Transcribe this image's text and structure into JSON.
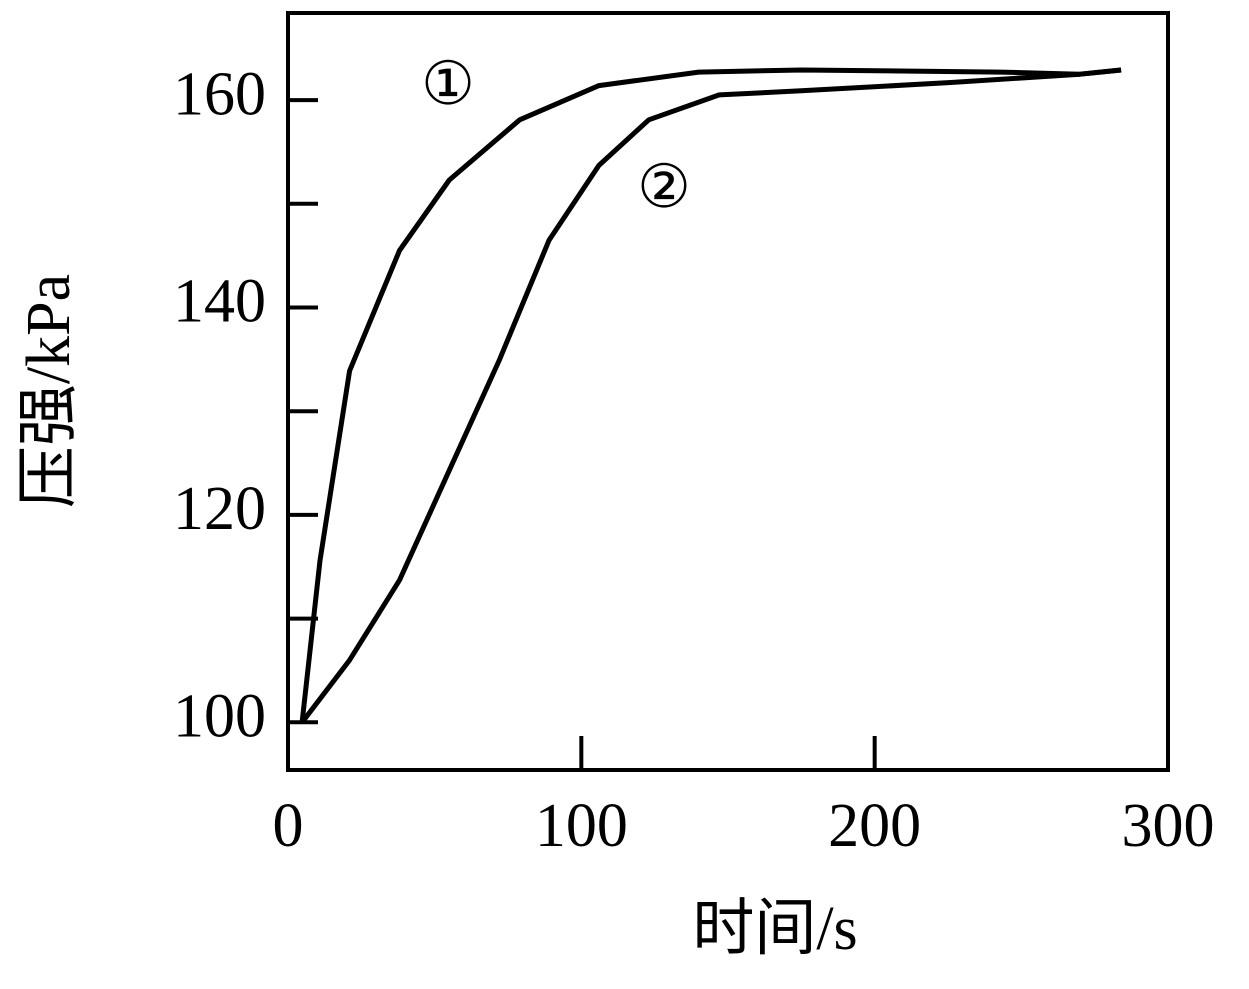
{
  "chart_data": {
    "type": "line",
    "x_label": "时间/s",
    "y_label": "压强/kPa",
    "xlim": [
      0,
      300
    ],
    "xticks": [
      0,
      100,
      200,
      300
    ],
    "ylim": [
      95.4,
      168.4
    ],
    "yticks": [
      100,
      120,
      140,
      160
    ],
    "minor_yticks": [
      110,
      130,
      150
    ],
    "grid": false,
    "series": [
      {
        "name": "①",
        "color": "#000000",
        "x": [
          4.8,
          10.9,
          21,
          38,
          55,
          79,
          106,
          140,
          175,
          243,
          270,
          284
        ],
        "values": [
          100,
          115.6,
          133.9,
          145.5,
          152.3,
          158.1,
          161.4,
          162.7,
          162.9,
          162.7,
          162.5,
          162.9
        ]
      },
      {
        "name": "②",
        "color": "#000000",
        "x": [
          4.8,
          21,
          38,
          55,
          72,
          89,
          106,
          123,
          147,
          175,
          226,
          270,
          284
        ],
        "values": [
          100,
          106,
          113.7,
          124.3,
          134.9,
          146.5,
          153.7,
          158.1,
          160.5,
          160.9,
          161.7,
          162.5,
          162.9
        ]
      }
    ]
  }
}
